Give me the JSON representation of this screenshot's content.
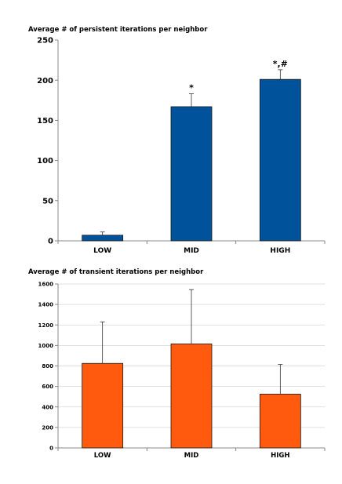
{
  "chart_data": [
    {
      "type": "bar",
      "title": "Average # of persistent iterations per neighbor",
      "categories": [
        "LOW",
        "MID",
        "HIGH"
      ],
      "series": [
        {
          "values": [
            7,
            167,
            201
          ],
          "error_plus": [
            4,
            16,
            12
          ],
          "color": "#00539b"
        }
      ],
      "annotations": [
        "",
        "*",
        "*,#"
      ],
      "ylim": [
        0,
        250
      ],
      "yticks": [
        0,
        50,
        100,
        150,
        200,
        250
      ],
      "grid": false,
      "legend": "none"
    },
    {
      "type": "bar",
      "title": "Average # of transient iterations per neighbor",
      "categories": [
        "LOW",
        "MID",
        "HIGH"
      ],
      "series": [
        {
          "values": [
            825,
            1015,
            525
          ],
          "error_plus": [
            405,
            530,
            290
          ],
          "color": "#ff5a0e"
        }
      ],
      "annotations": [
        "",
        "",
        ""
      ],
      "ylim": [
        0,
        1600
      ],
      "yticks": [
        0,
        200,
        400,
        600,
        800,
        1000,
        1200,
        1400,
        1600
      ],
      "grid": true,
      "legend": "none"
    }
  ]
}
